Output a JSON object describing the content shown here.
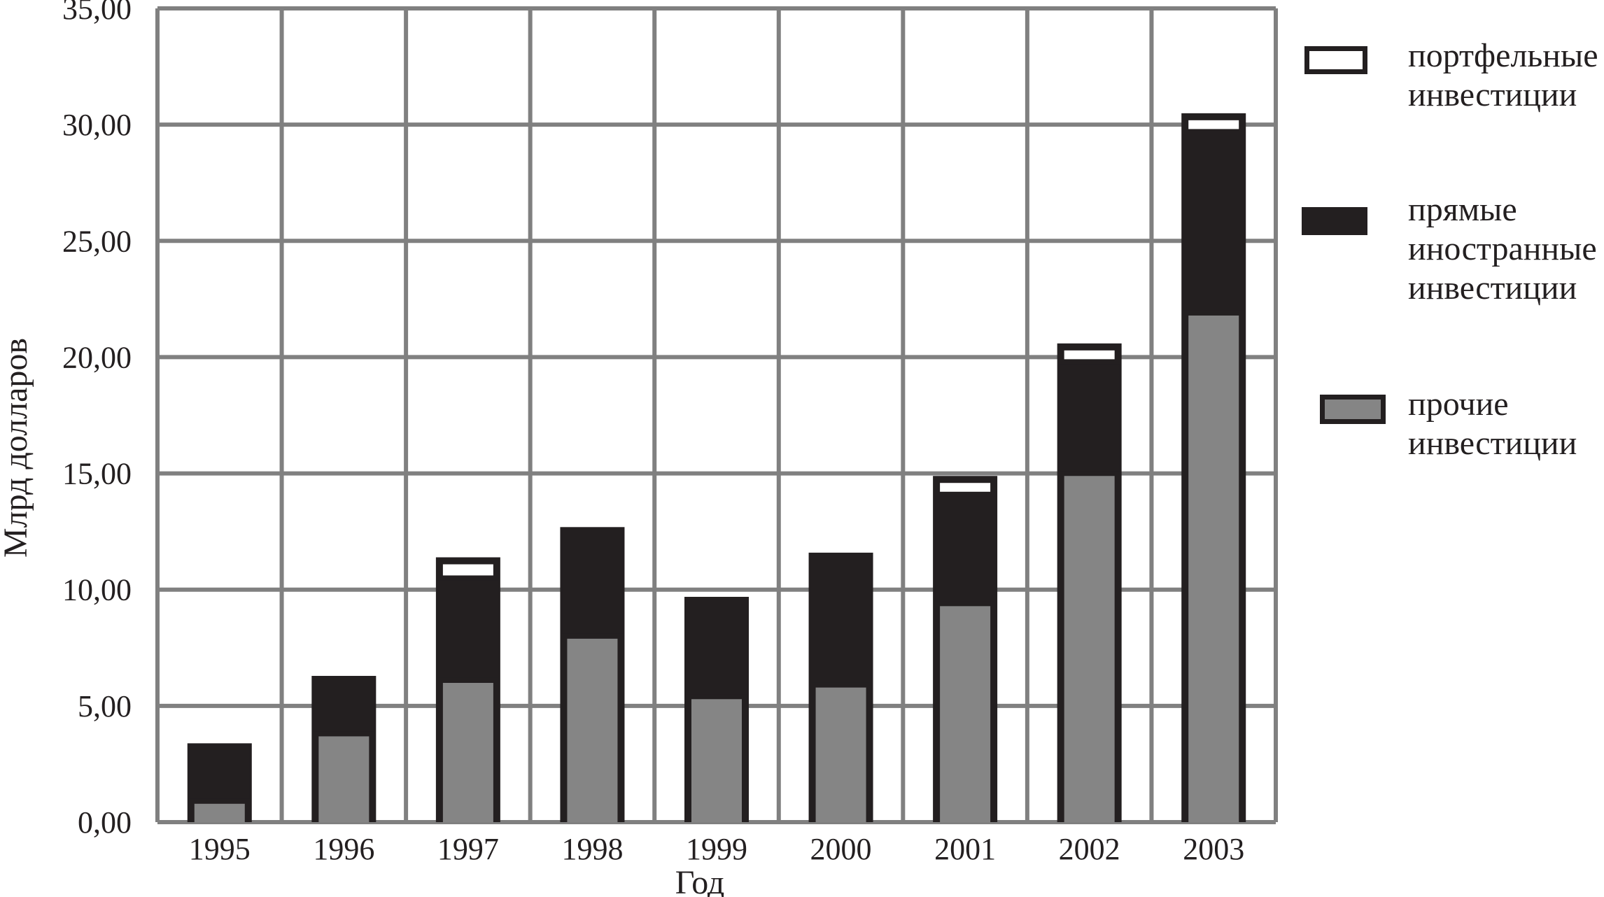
{
  "chart_data": {
    "type": "bar",
    "stacked": true,
    "categories": [
      "1995",
      "1996",
      "1997",
      "1998",
      "1999",
      "2000",
      "2001",
      "2002",
      "2003"
    ],
    "series": [
      {
        "name": "прочие инвестиции",
        "values": [
          1.0,
          3.9,
          6.2,
          8.1,
          5.5,
          6.0,
          9.5,
          15.1,
          22.0
        ],
        "color": "#858585"
      },
      {
        "name": "прямые иностранные инвестиции",
        "values": [
          2.3,
          2.3,
          4.2,
          4.5,
          4.1,
          5.5,
          4.5,
          4.6,
          7.6
        ],
        "color": "#231f20"
      },
      {
        "name": "портфельные инвестиции",
        "values": [
          0.0,
          0.0,
          0.9,
          0.0,
          0.0,
          0.0,
          0.8,
          0.8,
          0.8
        ],
        "color": "#ffffff"
      }
    ],
    "xlabel": "Год",
    "ylabel": "Млрд долларов",
    "ylim": [
      0,
      35
    ],
    "yticks": [
      "0,00",
      "5,00",
      "10,00",
      "15,00",
      "20,00",
      "25,00",
      "30,00",
      "35,00"
    ],
    "grid": true,
    "legend_position": "right"
  },
  "legend": [
    {
      "lines": [
        "портфельные",
        "инвестиции"
      ],
      "swatch": "outlined-white"
    },
    {
      "lines": [
        "прямые",
        "иностранные",
        "инвестиции"
      ],
      "swatch": "solid-black"
    },
    {
      "lines": [
        "прочие",
        "инвестиции"
      ],
      "swatch": "outlined-gray"
    }
  ],
  "colors": {
    "grid": "#808080",
    "outline": "#231f20",
    "other": "#858585",
    "fdi": "#231f20",
    "portfolio": "#ffffff"
  }
}
